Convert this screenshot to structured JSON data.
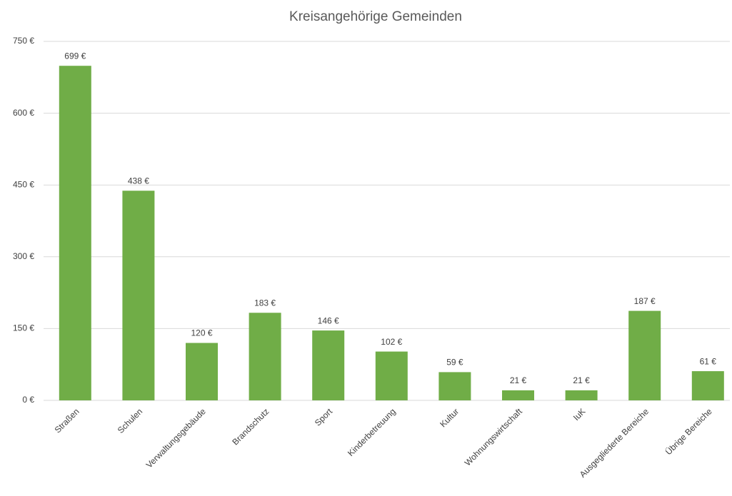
{
  "chart_data": {
    "type": "bar",
    "title": "Kreisangehörige Gemeinden",
    "categories": [
      "Straßen",
      "Schulen",
      "Verwaltungsgebäude",
      "Brandschutz",
      "Sport",
      "Kinderbetreuung",
      "Kultur",
      "Wohnungswirtschaft",
      "IuK",
      "Ausgegliederte Bereiche",
      "Übrige Bereiche"
    ],
    "values": [
      699,
      438,
      120,
      183,
      146,
      102,
      59,
      21,
      21,
      187,
      61
    ],
    "value_labels": [
      "699 €",
      "438 €",
      "120 €",
      "183 €",
      "146 €",
      "102 €",
      "59 €",
      "21 €",
      "21 €",
      "187 €",
      "61 €"
    ],
    "color": "#70ad47",
    "ylim": [
      0,
      750
    ],
    "yticks": [
      {
        "value": 0,
        "label": "0 €"
      },
      {
        "value": 150,
        "label": "150 €"
      },
      {
        "value": 300,
        "label": "300 €"
      },
      {
        "value": 450,
        "label": "450 €"
      },
      {
        "value": 600,
        "label": "600 €"
      },
      {
        "value": 750,
        "label": "750 €"
      }
    ],
    "grid": true
  }
}
